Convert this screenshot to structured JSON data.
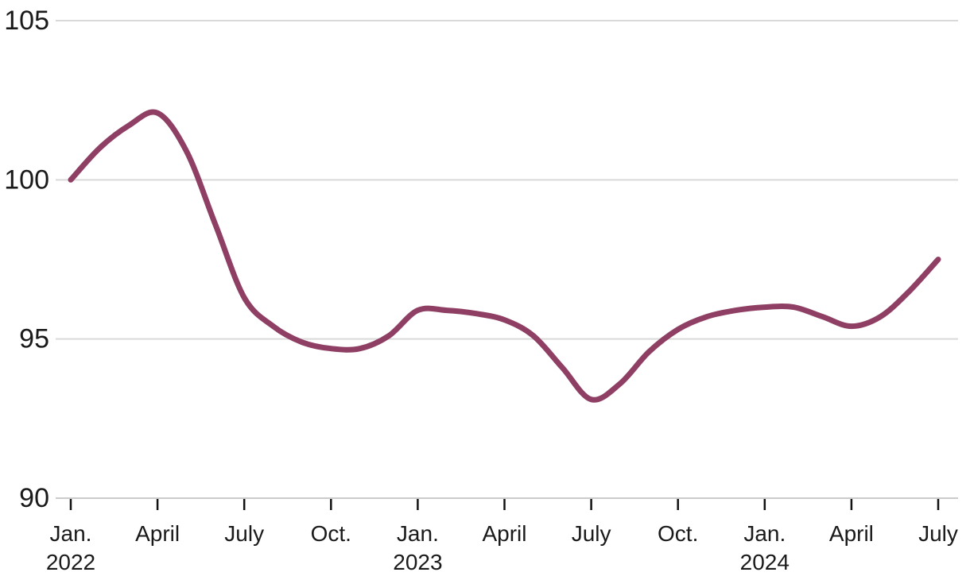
{
  "chart_data": {
    "type": "line",
    "title": "",
    "x": [
      "Jan. 2022",
      "Feb. 2022",
      "March 2022",
      "April 2022",
      "May 2022",
      "June 2022",
      "July 2022",
      "Aug. 2022",
      "Sept. 2022",
      "Oct. 2022",
      "Nov. 2022",
      "Dec. 2022",
      "Jan. 2023",
      "Feb. 2023",
      "March 2023",
      "April 2023",
      "May 2023",
      "June 2023",
      "July 2023",
      "Aug. 2023",
      "Sept. 2023",
      "Oct. 2023",
      "Nov. 2023",
      "Dec. 2023",
      "Jan. 2024",
      "Feb. 2024",
      "March 2024",
      "April 2024",
      "May 2024",
      "June 2024",
      "July 2024"
    ],
    "series": [
      {
        "name": "index-line",
        "values": [
          100.0,
          101.0,
          101.7,
          102.1,
          100.9,
          98.6,
          96.3,
          95.4,
          94.9,
          94.7,
          94.7,
          95.1,
          95.9,
          95.9,
          95.8,
          95.6,
          95.1,
          94.1,
          93.1,
          93.6,
          94.6,
          95.3,
          95.7,
          95.9,
          96.0,
          96.0,
          95.7,
          95.4,
          95.7,
          96.5,
          97.5
        ],
        "color": "#8e3f63"
      }
    ],
    "ylim": [
      90,
      105
    ],
    "yticks": [
      105,
      100,
      95,
      90
    ],
    "xticks": [
      {
        "month_index": 0,
        "label": "Jan.",
        "year": "2022"
      },
      {
        "month_index": 3,
        "label": "April"
      },
      {
        "month_index": 6,
        "label": "July"
      },
      {
        "month_index": 9,
        "label": "Oct."
      },
      {
        "month_index": 12,
        "label": "Jan.",
        "year": "2023"
      },
      {
        "month_index": 15,
        "label": "April"
      },
      {
        "month_index": 18,
        "label": "July"
      },
      {
        "month_index": 21,
        "label": "Oct."
      },
      {
        "month_index": 24,
        "label": "Jan.",
        "year": "2024"
      },
      {
        "month_index": 27,
        "label": "April"
      },
      {
        "month_index": 30,
        "label": "July"
      }
    ],
    "grid": "horizontal",
    "legend": "none",
    "colors": {
      "line": "#8e3f63",
      "gridline": "#d9d9d9",
      "axis_line": "#cbcbcb",
      "tick_mark": "#121212",
      "text": "#1a1a1a"
    }
  }
}
